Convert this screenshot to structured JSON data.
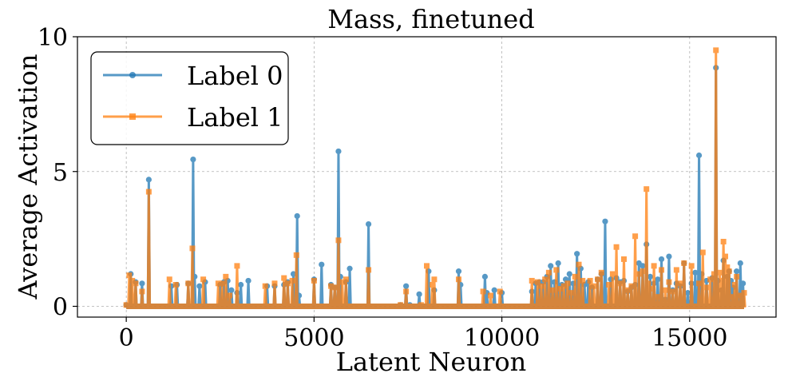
{
  "chart_data": {
    "type": "line",
    "title": "Mass, finetuned",
    "xlabel": "Latent Neuron",
    "ylabel": "Average Activation",
    "xlim": [
      -1300,
      17300
    ],
    "ylim": [
      -0.4,
      10
    ],
    "xticks": [
      0,
      5000,
      10000,
      15000
    ],
    "xtick_labels": [
      "0",
      "5000",
      "10000",
      "15000"
    ],
    "yticks": [
      0,
      5,
      10
    ],
    "ytick_labels": [
      "0",
      "5",
      "10"
    ],
    "grid": true,
    "legend_position": "top-left",
    "series": [
      {
        "name": "Label 0",
        "color": "#1f77b4",
        "marker": "circle",
        "x": [
          0,
          120,
          250,
          420,
          600,
          1200,
          1350,
          1650,
          1780,
          1820,
          1950,
          2100,
          2500,
          2600,
          2700,
          2800,
          2950,
          3050,
          3250,
          3750,
          3950,
          4200,
          4300,
          4450,
          4550,
          4600,
          5000,
          5200,
          5450,
          5550,
          5650,
          5700,
          5850,
          5950,
          6450,
          7300,
          7450,
          7550,
          7800,
          8050,
          8200,
          8850,
          8900,
          9550,
          9600,
          9800,
          10000,
          10800,
          10900,
          11000,
          11100,
          11200,
          11300,
          11400,
          11500,
          11600,
          11700,
          11800,
          11900,
          12000,
          12100,
          12200,
          12300,
          12400,
          12550,
          12650,
          12750,
          12900,
          13050,
          13150,
          13250,
          13350,
          13450,
          13550,
          13650,
          13750,
          13850,
          13950,
          14050,
          14150,
          14250,
          14350,
          14450,
          14550,
          14650,
          14750,
          14850,
          14950,
          15050,
          15150,
          15250,
          15320,
          15450,
          15600,
          15700,
          15750,
          15850,
          15900,
          16000,
          16050,
          16100,
          16150,
          16250,
          16350,
          16420
        ],
        "y": [
          0.05,
          1.2,
          0.9,
          0.85,
          4.7,
          0.75,
          0.8,
          0.85,
          5.45,
          1.1,
          0.75,
          0.9,
          0.8,
          0.9,
          0.95,
          0.6,
          0.5,
          0.8,
          0.95,
          0.75,
          0.75,
          0.8,
          0.9,
          1.2,
          3.35,
          0.4,
          1.0,
          1.55,
          0.8,
          0.7,
          5.75,
          1.1,
          0.9,
          1.4,
          3.05,
          0.05,
          0.75,
          0.05,
          0.45,
          1.3,
          0.6,
          1.3,
          0.8,
          1.1,
          0.5,
          0.6,
          0.5,
          0.55,
          0.85,
          0.9,
          0.9,
          1.1,
          1.5,
          0.9,
          1.6,
          0.8,
          1.0,
          1.2,
          0.85,
          1.95,
          1.4,
          0.8,
          0.9,
          0.7,
          1.0,
          1.2,
          3.15,
          1.0,
          1.05,
          0.9,
          0.95,
          0.55,
          0.7,
          0.8,
          1.6,
          1.5,
          2.3,
          1.1,
          0.85,
          1.0,
          1.75,
          0.25,
          1.85,
          0.6,
          0.85,
          0.75,
          1.6,
          0.5,
          0.85,
          1.25,
          5.6,
          1.2,
          0.95,
          1.05,
          8.85,
          0.95,
          0.6,
          1.7,
          1.1,
          1.3,
          0.95,
          0.7,
          1.3,
          1.6,
          0.85
        ],
        "opacity": 0.75
      },
      {
        "name": "Label 1",
        "color": "#ff7f0e",
        "marker": "square",
        "x": [
          0,
          80,
          160,
          250,
          420,
          600,
          1150,
          1320,
          1650,
          1760,
          2050,
          2450,
          2550,
          2650,
          2750,
          2950,
          3700,
          3950,
          4200,
          4300,
          4420,
          4530,
          5000,
          5450,
          5550,
          5650,
          5750,
          5850,
          6450,
          7300,
          7450,
          7850,
          8000,
          8150,
          8200,
          8850,
          9500,
          9700,
          9950,
          10800,
          10950,
          11050,
          11150,
          11250,
          11350,
          11450,
          11550,
          11650,
          11750,
          11850,
          11950,
          12050,
          12150,
          12350,
          12450,
          12550,
          12650,
          12850,
          12950,
          13050,
          13150,
          13250,
          13350,
          13450,
          13550,
          13650,
          13750,
          13850,
          13900,
          13950,
          14050,
          14150,
          14250,
          14350,
          14450,
          14550,
          14650,
          14750,
          14850,
          15050,
          15250,
          15350,
          15450,
          15550,
          15650,
          15700,
          15800,
          15850,
          15900,
          15950,
          16000,
          16050,
          16150,
          16200,
          16250,
          16350,
          16400,
          16450
        ],
        "y": [
          0.05,
          1.15,
          0.95,
          0.85,
          0.55,
          4.25,
          1.0,
          0.8,
          0.85,
          2.15,
          1.0,
          0.85,
          0.85,
          1.1,
          0.4,
          1.5,
          0.75,
          0.85,
          1.05,
          0.85,
          0.95,
          1.9,
          0.95,
          0.75,
          0.7,
          2.45,
          0.9,
          1.0,
          1.35,
          0.05,
          0.55,
          0.05,
          1.5,
          0.8,
          1.0,
          1.0,
          0.55,
          0.4,
          0.55,
          0.95,
          0.9,
          0.75,
          1.0,
          1.25,
          0.6,
          1.35,
          0.65,
          0.75,
          0.85,
          0.5,
          1.1,
          1.55,
          0.95,
          0.95,
          0.75,
          1.0,
          1.25,
          0.8,
          1.2,
          2.2,
          0.85,
          1.75,
          0.6,
          0.75,
          2.6,
          1.2,
          1.3,
          4.35,
          0.85,
          0.65,
          1.5,
          0.35,
          1.35,
          0.6,
          0.9,
          0.55,
          1.35,
          0.85,
          1.6,
          1.5,
          0.85,
          2.0,
          0.7,
          1.0,
          1.2,
          9.5,
          1.25,
          0.95,
          2.4,
          1.85,
          1.45,
          1.3,
          0.35,
          0.8,
          1.1,
          0.4,
          0.25,
          0.5
        ],
        "opacity": 0.75
      }
    ]
  }
}
